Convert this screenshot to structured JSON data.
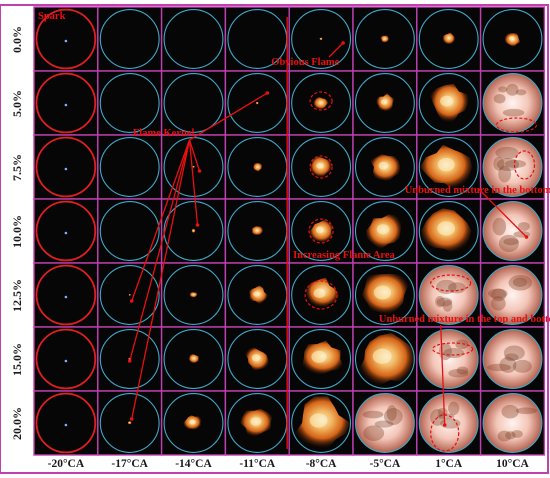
{
  "rows": [
    {
      "label": "0.0%",
      "flame": [
        0,
        0,
        0,
        0,
        0.05,
        0.14,
        0.22,
        0.26
      ]
    },
    {
      "label": "5.0%",
      "flame": [
        0,
        0,
        0,
        0.05,
        0.22,
        0.3,
        0.62,
        0.95
      ]
    },
    {
      "label": "7.5%",
      "flame": [
        0,
        0,
        0.04,
        0.16,
        0.34,
        0.45,
        0.78,
        0.95
      ]
    },
    {
      "label": "10.0%",
      "flame": [
        0,
        0,
        0.08,
        0.2,
        0.38,
        0.58,
        0.82,
        0.98
      ]
    },
    {
      "label": "12.5%",
      "flame": [
        0,
        0.04,
        0.12,
        0.3,
        0.55,
        0.8,
        0.92,
        1.0
      ]
    },
    {
      "label": "15.0%",
      "flame": [
        0,
        0.05,
        0.18,
        0.4,
        0.7,
        0.88,
        1.0,
        1.0
      ]
    },
    {
      "label": "20.0%",
      "flame": [
        0,
        0.07,
        0.28,
        0.5,
        0.82,
        0.95,
        1.0,
        1.0
      ]
    }
  ],
  "columns": [
    "-20°CA",
    "-17°CA",
    "-14°CA",
    "-11°CA",
    "-8°CA",
    "-5°CA",
    "1°CA",
    "10°CA"
  ],
  "annotations": {
    "spark": "Spark",
    "obvious_flame": "Obvious Flame",
    "flame_kernel": "Flame Kernel",
    "increasing_area": "Increasing Flame Area",
    "unburned_bottom": "Unburned mixture in the bottom",
    "unburned_top_bottom": "Unburned mixture in the top and bottom"
  },
  "colors": {
    "panel_bg": "#060606",
    "grid": "#c040b0",
    "circle_blue": "#40a8c8",
    "circle_red": "#e02020",
    "annotation": "#e81010",
    "flame_core": "#fff2c8",
    "flame_mid": "#ff9a2a",
    "flame_edge": "#8a2a08"
  }
}
